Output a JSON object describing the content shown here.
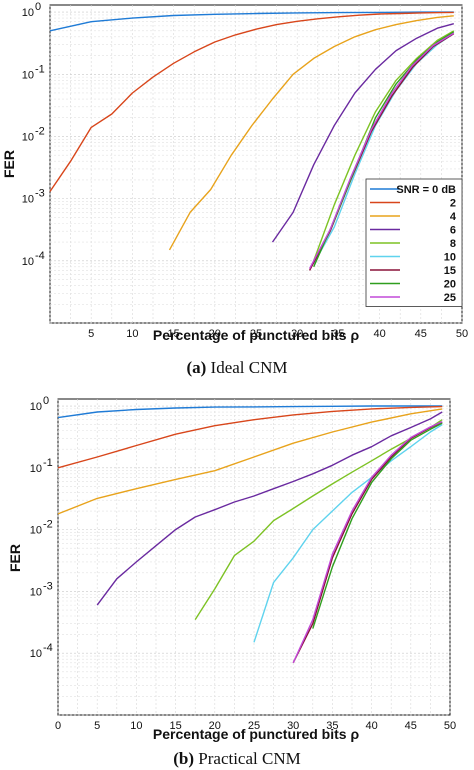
{
  "chart_data": [
    {
      "type": "line",
      "caption_label": "(a)",
      "caption_text": "Ideal CNM",
      "xlabel": "Percentage of punctured bits ρ",
      "ylabel": "FER",
      "xlim": [
        0,
        50
      ],
      "ylim": [
        1e-05,
        1.3
      ],
      "yscale": "log",
      "grid": true,
      "legend_position": "right",
      "xticks": [
        "5",
        "10",
        "15",
        "20",
        "25",
        "30",
        "35",
        "40",
        "45",
        "50"
      ],
      "yticks": [
        "10-4",
        "10-3",
        "10-2",
        "10-1",
        "100"
      ],
      "series": [
        {
          "name": "SNR = 0 dB",
          "color": "#1f7bd6",
          "x": [
            0,
            5,
            10,
            15,
            20,
            25,
            30,
            35,
            40,
            45,
            49
          ],
          "y": [
            0.5,
            0.7,
            0.8,
            0.88,
            0.92,
            0.95,
            0.97,
            0.98,
            0.99,
            1.0,
            1.0
          ]
        },
        {
          "name": "2",
          "color": "#d8461b",
          "x": [
            0,
            2.5,
            5,
            7.5,
            10,
            12.5,
            15,
            17.5,
            20,
            22.5,
            25,
            27.5,
            30,
            32.5,
            35,
            37.5,
            40,
            42.5,
            45,
            47.5,
            49
          ],
          "y": [
            0.0013,
            0.004,
            0.014,
            0.023,
            0.05,
            0.09,
            0.15,
            0.23,
            0.33,
            0.43,
            0.53,
            0.63,
            0.71,
            0.78,
            0.84,
            0.89,
            0.93,
            0.95,
            0.97,
            0.98,
            0.99
          ]
        },
        {
          "name": "4",
          "color": "#e8a31c",
          "x": [
            14.5,
            17,
            19.5,
            22,
            24.5,
            27,
            29.5,
            32,
            34.5,
            37,
            39.5,
            42,
            44.5,
            47,
            49
          ],
          "y": [
            0.00015,
            0.0006,
            0.0014,
            0.005,
            0.015,
            0.04,
            0.1,
            0.18,
            0.28,
            0.4,
            0.52,
            0.63,
            0.73,
            0.82,
            0.87
          ]
        },
        {
          "name": "6",
          "color": "#6a2aa0",
          "x": [
            27,
            29.5,
            32,
            34.5,
            37,
            39.5,
            42,
            44.5,
            47,
            49
          ],
          "y": [
            0.0002,
            0.0006,
            0.0035,
            0.015,
            0.05,
            0.12,
            0.24,
            0.38,
            0.55,
            0.65
          ]
        },
        {
          "name": "8",
          "color": "#7dc224",
          "x": [
            32,
            34.5,
            37,
            39.5,
            42,
            44.5,
            47,
            49
          ],
          "y": [
            0.0001,
            0.0008,
            0.005,
            0.025,
            0.08,
            0.18,
            0.35,
            0.5
          ]
        },
        {
          "name": "10",
          "color": "#5fd3ee",
          "x": [
            32,
            34.5,
            37,
            39.5,
            42,
            44.5,
            47,
            49
          ],
          "y": [
            9e-05,
            0.00035,
            0.0025,
            0.015,
            0.055,
            0.15,
            0.3,
            0.45
          ]
        },
        {
          "name": "15",
          "color": "#8a1238",
          "x": [
            31.5,
            34,
            36.5,
            39,
            41.5,
            44,
            46.5,
            49
          ],
          "y": [
            7e-05,
            0.0003,
            0.002,
            0.012,
            0.045,
            0.13,
            0.28,
            0.45
          ]
        },
        {
          "name": "20",
          "color": "#2f9e1e",
          "x": [
            32,
            34.5,
            37,
            39.5,
            42,
            44.5,
            47,
            49
          ],
          "y": [
            8e-05,
            0.00045,
            0.003,
            0.02,
            0.07,
            0.17,
            0.33,
            0.48
          ]
        },
        {
          "name": "25",
          "color": "#c24ad8",
          "x": [
            31.5,
            34,
            36.5,
            39,
            41.5,
            44,
            46.5,
            49
          ],
          "y": [
            7.5e-05,
            0.00032,
            0.0022,
            0.013,
            0.05,
            0.14,
            0.29,
            0.46
          ]
        }
      ]
    },
    {
      "type": "line",
      "caption_label": "(b)",
      "caption_text": "Practical CNM",
      "xlabel": "Percentage of punctured bits ρ",
      "ylabel": "FER",
      "xlim": [
        0,
        50
      ],
      "ylim": [
        1e-05,
        1.3
      ],
      "yscale": "log",
      "grid": true,
      "xticks": [
        "0",
        "5",
        "10",
        "15",
        "20",
        "25",
        "30",
        "35",
        "40",
        "45",
        "50"
      ],
      "yticks": [
        "10-4",
        "10-3",
        "10-2",
        "10-1",
        "100"
      ],
      "series": [
        {
          "name": "SNR = 0 dB",
          "color": "#1f7bd6",
          "x": [
            0,
            5,
            10,
            15,
            20,
            25,
            30,
            35,
            40,
            45,
            49
          ],
          "y": [
            0.65,
            0.8,
            0.88,
            0.93,
            0.96,
            0.97,
            0.98,
            0.99,
            1.0,
            1.0,
            1.0
          ]
        },
        {
          "name": "2",
          "color": "#d8461b",
          "x": [
            0,
            5,
            10,
            15,
            20,
            25,
            30,
            35,
            40,
            45,
            49
          ],
          "y": [
            0.1,
            0.15,
            0.23,
            0.35,
            0.48,
            0.6,
            0.72,
            0.82,
            0.9,
            0.95,
            0.98
          ]
        },
        {
          "name": "4",
          "color": "#e8a31c",
          "x": [
            0,
            5,
            10,
            15,
            20,
            25,
            30,
            35,
            40,
            45,
            49
          ],
          "y": [
            0.018,
            0.032,
            0.046,
            0.065,
            0.09,
            0.15,
            0.25,
            0.38,
            0.55,
            0.75,
            0.9
          ]
        },
        {
          "name": "6",
          "color": "#6a2aa0",
          "x": [
            5,
            7.5,
            10,
            12.5,
            15,
            17.5,
            20,
            22.5,
            25,
            27.5,
            30,
            32.5,
            35,
            37.5,
            40,
            42.5,
            45,
            47.5,
            49
          ],
          "y": [
            0.0006,
            0.0016,
            0.003,
            0.0055,
            0.01,
            0.016,
            0.021,
            0.028,
            0.035,
            0.046,
            0.06,
            0.08,
            0.11,
            0.16,
            0.22,
            0.33,
            0.45,
            0.62,
            0.8
          ]
        },
        {
          "name": "8",
          "color": "#7dc224",
          "x": [
            17.5,
            20,
            22.5,
            25,
            27.5,
            30,
            32.5,
            35,
            37.5,
            40,
            42.5,
            45,
            47.5,
            49
          ],
          "y": [
            0.00035,
            0.0011,
            0.0038,
            0.0065,
            0.014,
            0.022,
            0.035,
            0.055,
            0.085,
            0.13,
            0.2,
            0.3,
            0.45,
            0.6
          ]
        },
        {
          "name": "10",
          "color": "#5fd3ee",
          "x": [
            25,
            27.5,
            30,
            32.5,
            35,
            37.5,
            40,
            42.5,
            45,
            47.5,
            49
          ],
          "y": [
            0.00015,
            0.0014,
            0.0035,
            0.01,
            0.02,
            0.04,
            0.07,
            0.13,
            0.22,
            0.38,
            0.5
          ]
        },
        {
          "name": "15",
          "color": "#8a1238",
          "x": [
            30,
            32.5,
            35,
            37.5,
            40,
            42.5,
            45,
            47.5,
            49
          ],
          "y": [
            7e-05,
            0.0003,
            0.0035,
            0.018,
            0.065,
            0.15,
            0.3,
            0.45,
            0.55
          ]
        },
        {
          "name": "20",
          "color": "#2f9e1e",
          "x": [
            32.5,
            35,
            37.5,
            40,
            42.5,
            45,
            47.5,
            49
          ],
          "y": [
            0.00025,
            0.0025,
            0.015,
            0.058,
            0.14,
            0.28,
            0.42,
            0.53
          ]
        },
        {
          "name": "25",
          "color": "#c24ad8",
          "x": [
            30,
            32.5,
            35,
            37.5,
            40,
            42.5,
            45,
            47.5,
            49
          ],
          "y": [
            7e-05,
            0.00035,
            0.004,
            0.02,
            0.07,
            0.16,
            0.31,
            0.46,
            0.56
          ]
        }
      ]
    }
  ]
}
